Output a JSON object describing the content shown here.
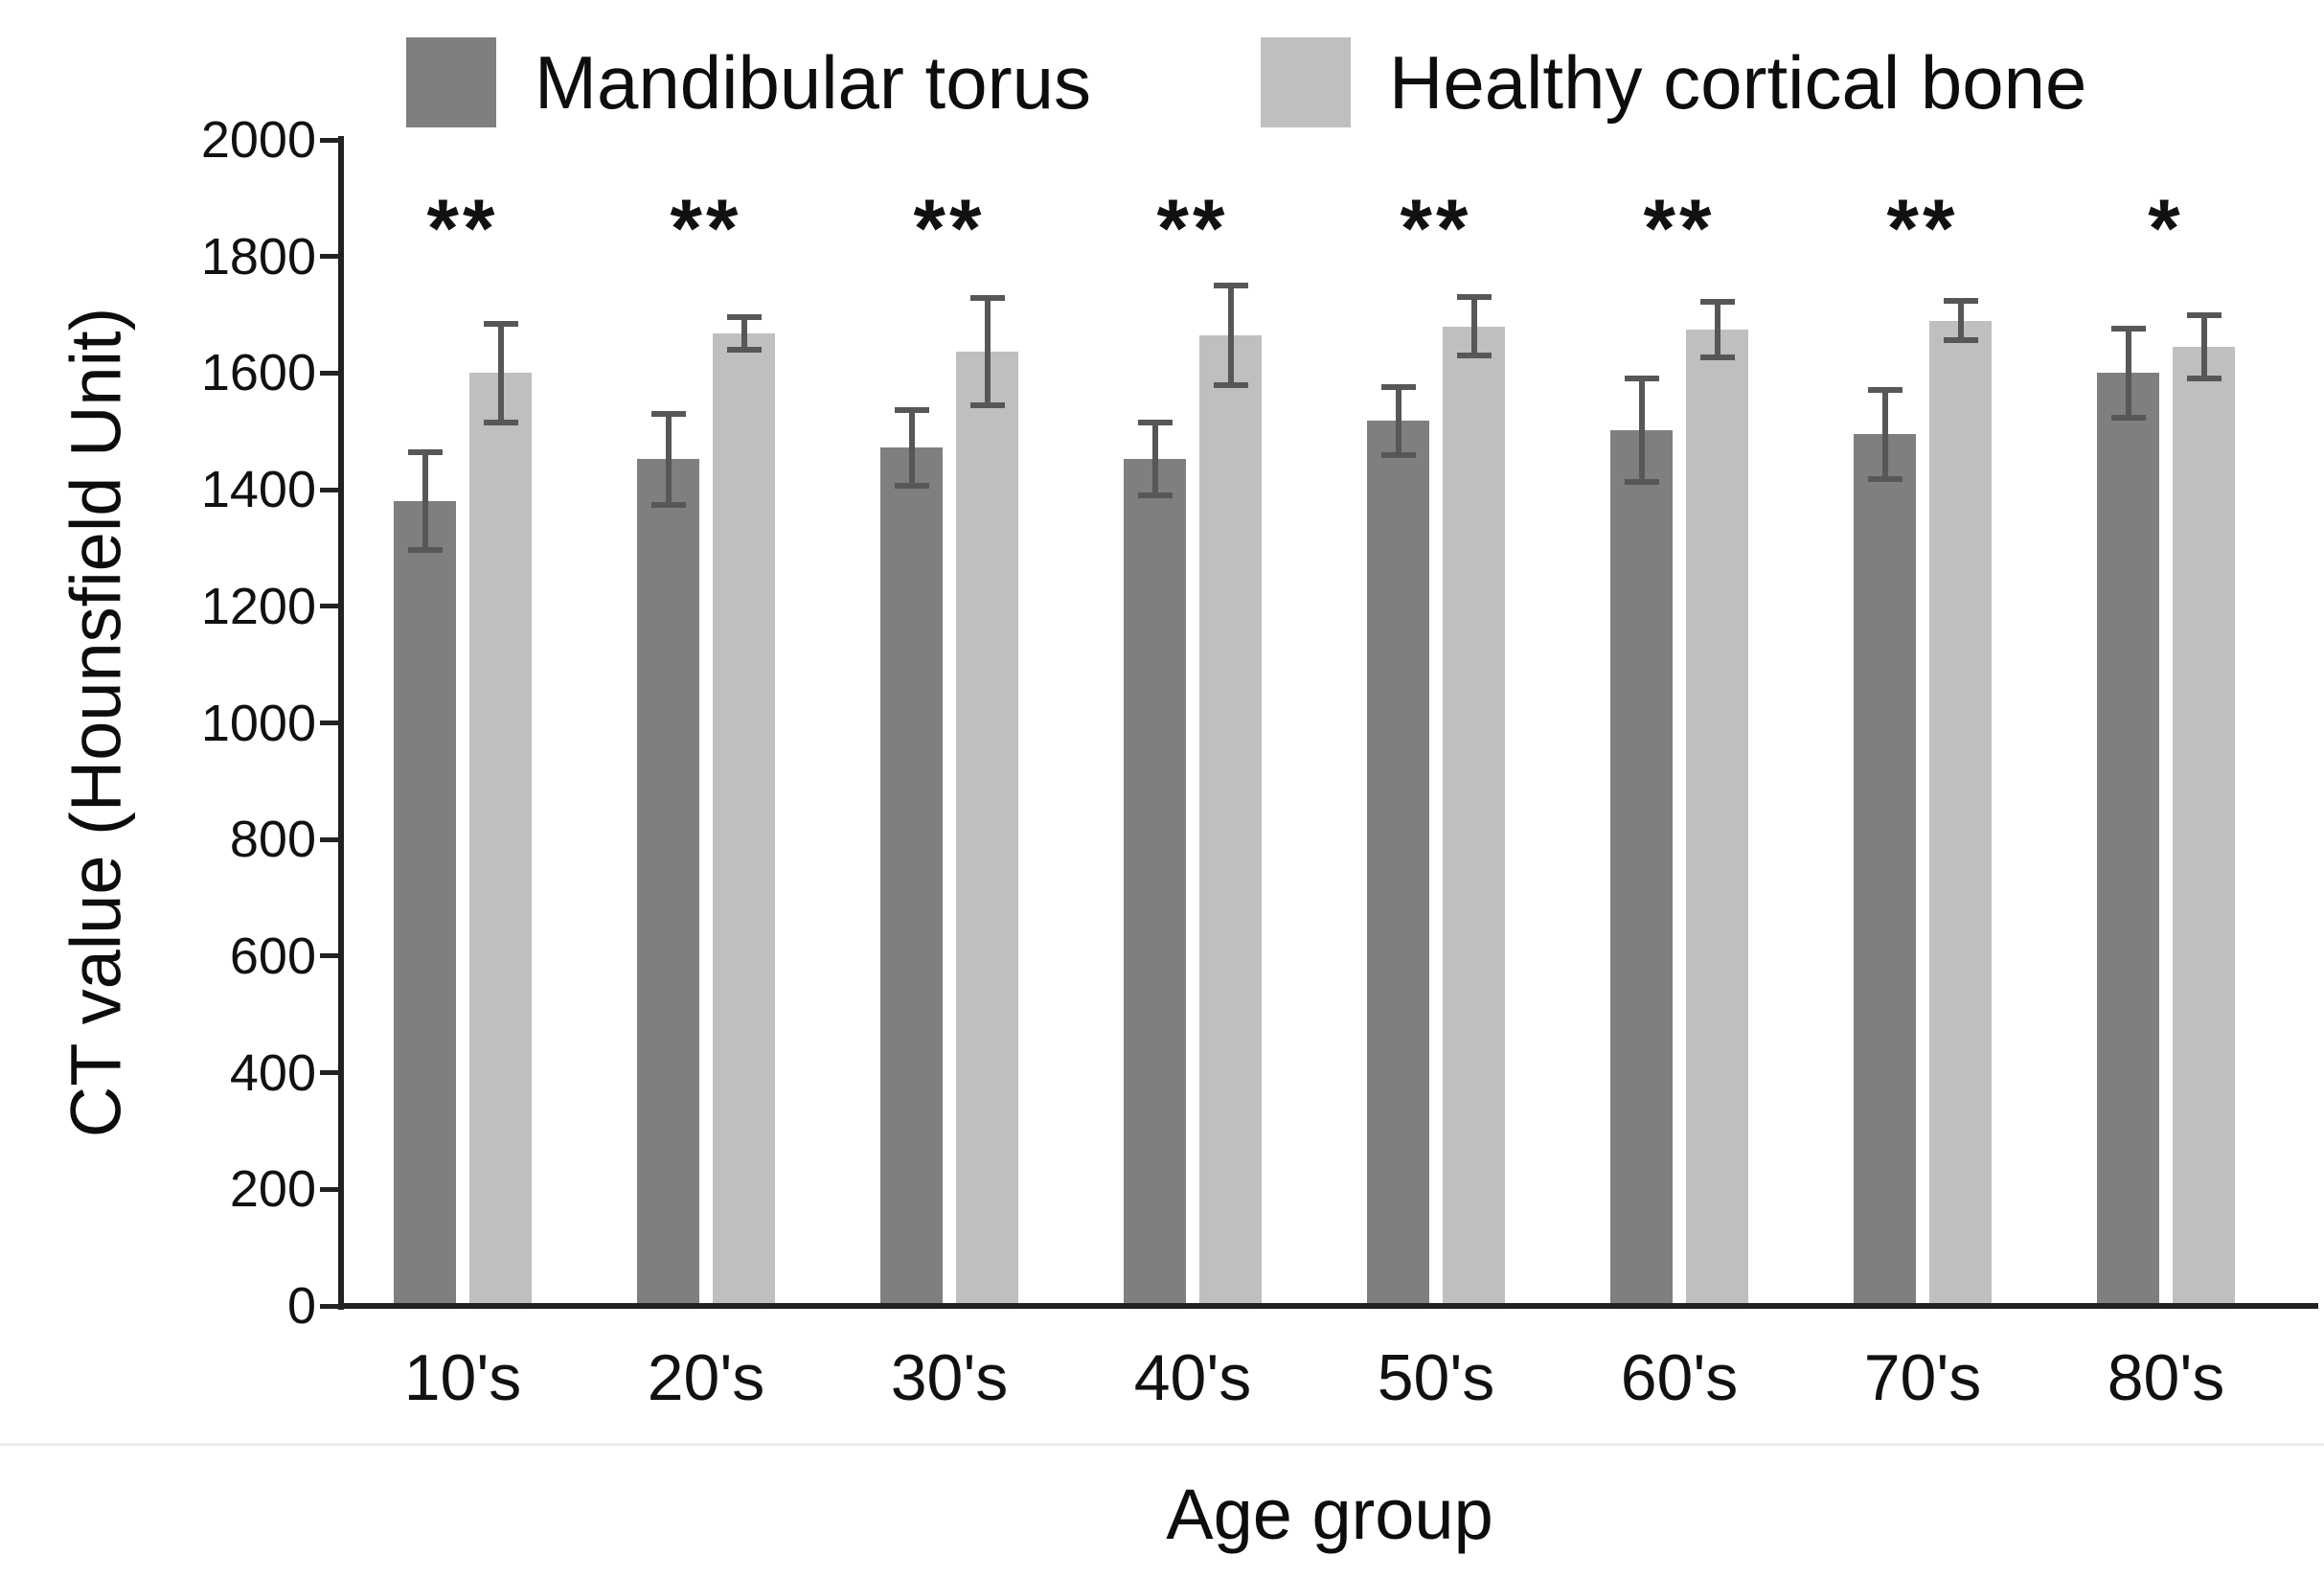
{
  "chart_data": {
    "type": "bar",
    "title": "",
    "xlabel": "Age group",
    "ylabel": "CT value (Hounsfield Unit)",
    "categories": [
      "10's",
      "20's",
      "30's",
      "40's",
      "50's",
      "60's",
      "70's",
      "80's"
    ],
    "series": [
      {
        "name": "Mandibular torus",
        "color": "#7f7f7f",
        "values": [
          1380,
          1452,
          1472,
          1453,
          1518,
          1502,
          1495,
          1600
        ],
        "errors": [
          84,
          78,
          65,
          63,
          58,
          89,
          76,
          76
        ]
      },
      {
        "name": "Healthy cortical bone",
        "color": "#bfbfbf",
        "values": [
          1600,
          1668,
          1637,
          1665,
          1680,
          1675,
          1690,
          1645
        ],
        "errors": [
          84,
          28,
          92,
          86,
          50,
          48,
          34,
          55
        ]
      }
    ],
    "significance_markers": [
      "**",
      "**",
      "**",
      "**",
      "**",
      "**",
      "**",
      "*"
    ],
    "ylim": [
      0,
      2000
    ],
    "ytick_step": 200,
    "yticks": [
      0,
      200,
      400,
      600,
      800,
      1000,
      1200,
      1400,
      1600,
      1800,
      2000
    ],
    "grid": false,
    "legend_position": "top",
    "error_bar_color": "#575757",
    "axis_color": "#222222",
    "text_color": "#141414",
    "background_color": "#ffffff"
  }
}
